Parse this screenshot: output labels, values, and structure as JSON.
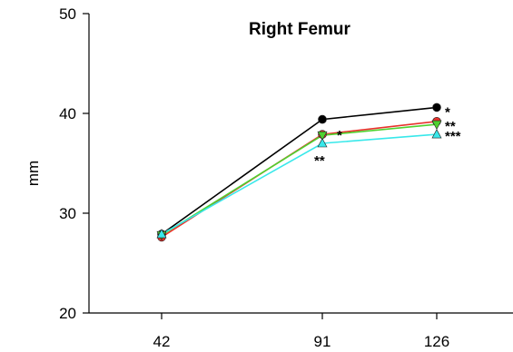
{
  "chart_data": {
    "type": "line",
    "title": "Right Femur",
    "xlabel": "",
    "ylabel": "mm",
    "x": [
      42,
      91,
      126
    ],
    "xticks": [
      "42",
      "91",
      "126"
    ],
    "yticks": [
      "20",
      "30",
      "40",
      "50"
    ],
    "ylim": [
      20,
      50
    ],
    "grid": false,
    "legend": "none",
    "series": [
      {
        "color": "#000000",
        "marker": "circle",
        "values": [
          27.9,
          39.4,
          40.6
        ]
      },
      {
        "color": "#e8322b",
        "marker": "circle",
        "values": [
          27.6,
          37.9,
          39.2
        ]
      },
      {
        "color": "#4fd12e",
        "marker": "triangle-down",
        "values": [
          27.8,
          37.8,
          38.9
        ]
      },
      {
        "color": "#38e8ea",
        "marker": "triangle-up",
        "values": [
          27.9,
          37.0,
          37.9
        ]
      }
    ],
    "annotations": [
      {
        "text": "*",
        "x": 91,
        "y": 37.9
      },
      {
        "text": "**",
        "x": 91,
        "y": 37.0
      },
      {
        "text": "*",
        "x": 126,
        "y": 40.6
      },
      {
        "text": "**",
        "x": 126,
        "y": 39.2
      },
      {
        "text": "***",
        "x": 126,
        "y": 38.2
      }
    ]
  }
}
